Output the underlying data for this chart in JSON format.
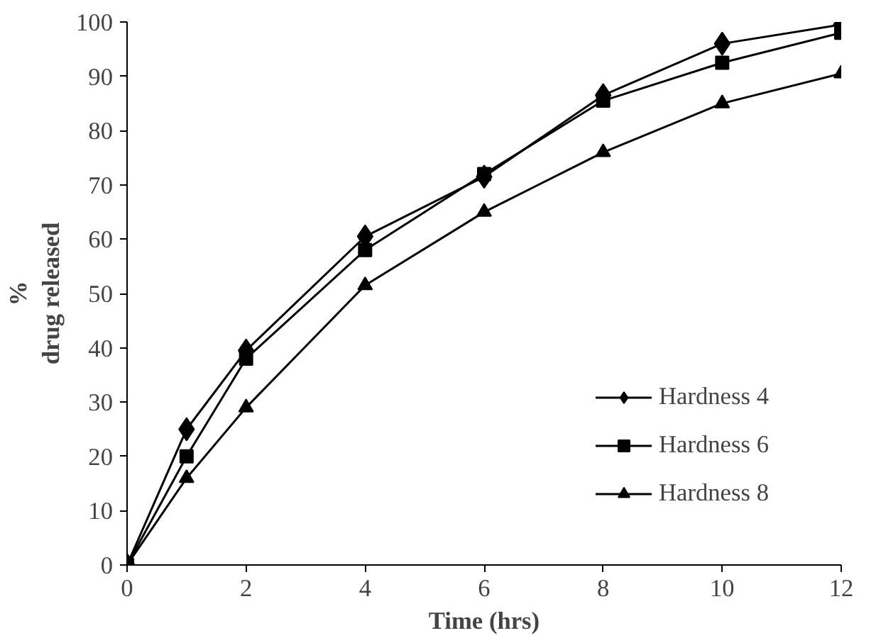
{
  "chart_data": {
    "type": "line",
    "xlabel": "Time (hrs)",
    "ylabel": "%\ndrug released",
    "x": [
      0,
      1,
      2,
      4,
      6,
      8,
      10,
      12
    ],
    "series": [
      {
        "name": "Hardness 4",
        "color": "#000000",
        "marker": "diamond",
        "values": [
          0,
          25,
          39.5,
          60.5,
          71.5,
          86.5,
          96,
          99.5
        ]
      },
      {
        "name": "Hardness 6",
        "color": "#000000",
        "marker": "square",
        "values": [
          0,
          20,
          38,
          58,
          72,
          85.5,
          92.5,
          98
        ]
      },
      {
        "name": "Hardness 8",
        "color": "#000000",
        "marker": "triangle",
        "values": [
          0,
          16,
          29,
          51.5,
          65,
          76,
          85,
          90.5
        ]
      }
    ],
    "xlim": [
      0,
      12
    ],
    "ylim": [
      0,
      100
    ],
    "xticks": [
      0,
      2,
      4,
      6,
      8,
      10,
      12
    ],
    "yticks": [
      0,
      10,
      20,
      30,
      40,
      50,
      60,
      70,
      80,
      90,
      100
    ],
    "grid": false,
    "legend": "right",
    "line_style": "solid"
  }
}
